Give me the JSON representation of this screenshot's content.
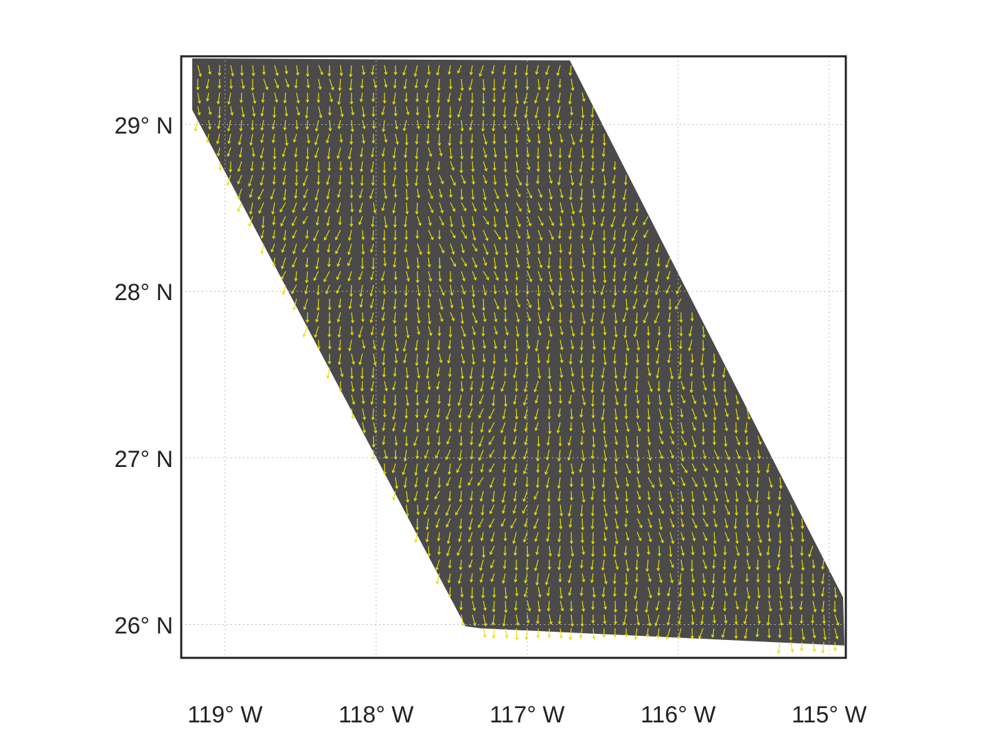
{
  "chart_data": {
    "type": "map",
    "xlim": [
      -119.29,
      -114.89
    ],
    "ylim": [
      25.8,
      29.41
    ],
    "xticks": [
      {
        "value": -119,
        "label": "119° W"
      },
      {
        "value": -118,
        "label": "118° W"
      },
      {
        "value": -117,
        "label": "117° W"
      },
      {
        "value": -116,
        "label": "116° W"
      },
      {
        "value": -115,
        "label": "115° W"
      }
    ],
    "yticks": [
      {
        "value": 26,
        "label": "26° N"
      },
      {
        "value": 27,
        "label": "27° N"
      },
      {
        "value": 28,
        "label": "28° N"
      },
      {
        "value": 29,
        "label": "29° N"
      }
    ],
    "grid": true
  }
}
